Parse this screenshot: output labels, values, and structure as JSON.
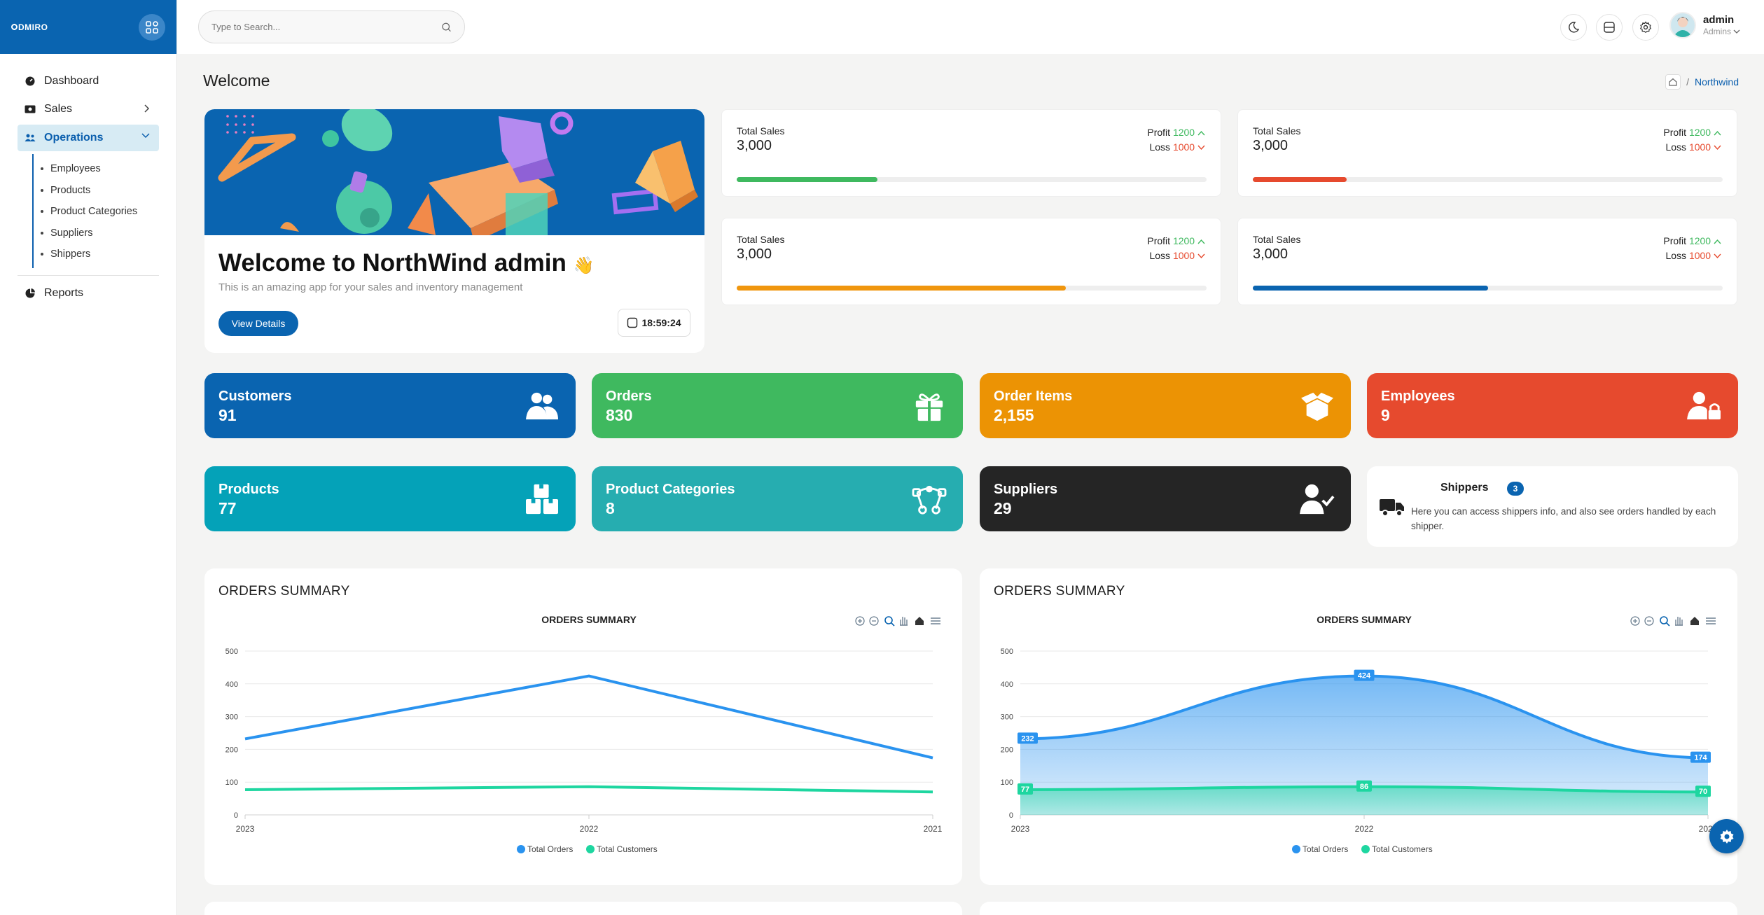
{
  "brand": {
    "logo": "DMIRO"
  },
  "sidebar": {
    "items": [
      {
        "label": "Dashboard"
      },
      {
        "label": "Sales"
      },
      {
        "label": "Operations"
      },
      {
        "label": "Reports"
      }
    ],
    "sub_items": [
      "Employees",
      "Products",
      "Product Categories",
      "Suppliers",
      "Shippers"
    ]
  },
  "header": {
    "search_placeholder": "Type to Search...",
    "user_name": "admin",
    "user_role": "Admins"
  },
  "page": {
    "title": "Welcome",
    "breadcrumb": "Northwind"
  },
  "welcome": {
    "heading": "Welcome to NorthWind admin",
    "wave": "👋",
    "subtitle": "This is an amazing app for your sales and inventory management",
    "button": "View Details",
    "time": "18:59:24"
  },
  "sales_cards": [
    {
      "label": "Total Sales",
      "value": "3,000",
      "profit_label": "Profit",
      "profit": "1200",
      "loss_label": "Loss",
      "loss": "1000",
      "progress": 0.3,
      "color": "#3fb95f"
    },
    {
      "label": "Total Sales",
      "value": "3,000",
      "profit_label": "Profit",
      "profit": "1200",
      "loss_label": "Loss",
      "loss": "1000",
      "progress": 0.2,
      "color": "#e64a2e"
    },
    {
      "label": "Total Sales",
      "value": "3,000",
      "profit_label": "Profit",
      "profit": "1200",
      "loss_label": "Loss",
      "loss": "1000",
      "progress": 0.7,
      "color": "#f0960e"
    },
    {
      "label": "Total Sales",
      "value": "3,000",
      "profit_label": "Profit",
      "profit": "1200",
      "loss_label": "Loss",
      "loss": "1000",
      "progress": 0.5,
      "color": "#0a64b0"
    }
  ],
  "stats": [
    {
      "label": "Customers",
      "value": "91",
      "color": "#0a64b0",
      "icon": "users-icon"
    },
    {
      "label": "Orders",
      "value": "830",
      "color": "#3fb95f",
      "icon": "gift-icon"
    },
    {
      "label": "Order Items",
      "value": "2,155",
      "color": "#ec9304",
      "icon": "box-open-icon"
    },
    {
      "label": "Employees",
      "value": "9",
      "color": "#e64a2e",
      "icon": "user-lock-icon"
    },
    {
      "label": "Products",
      "value": "77",
      "color": "#04a2b8",
      "icon": "boxes-icon"
    },
    {
      "label": "Product Categories",
      "value": "8",
      "color": "#26adb0",
      "icon": "vector-nodes-icon"
    },
    {
      "label": "Suppliers",
      "value": "29",
      "color": "#252525",
      "icon": "user-check-icon"
    }
  ],
  "shippers": {
    "title": "Shippers",
    "count": "3",
    "description": "Here you can access shippers info, and also see orders handled by each shipper."
  },
  "chart_data": [
    {
      "type": "line",
      "card_title": "ORDERS SUMMARY",
      "title": "ORDERS SUMMARY",
      "x": [
        "2023",
        "2022",
        "2021"
      ],
      "series": [
        {
          "name": "Total Orders",
          "values": [
            232,
            424,
            174
          ],
          "color": "#2a93ef"
        },
        {
          "name": "Total Customers",
          "values": [
            77,
            86,
            70
          ],
          "color": "#1ed6a0"
        }
      ],
      "ylim": [
        0,
        500
      ],
      "yticks": [
        0,
        100,
        200,
        300,
        400,
        500
      ],
      "legend": "bottom",
      "grid": true
    },
    {
      "type": "area",
      "card_title": "ORDERS SUMMARY",
      "title": "ORDERS SUMMARY",
      "x": [
        "2023",
        "2022",
        "2021"
      ],
      "series": [
        {
          "name": "Total Orders",
          "values": [
            232,
            424,
            174
          ],
          "color": "#2a93ef"
        },
        {
          "name": "Total Customers",
          "values": [
            77,
            86,
            70
          ],
          "color": "#1ed6a0"
        }
      ],
      "ylim": [
        0,
        500
      ],
      "yticks": [
        0,
        100,
        200,
        300,
        400,
        500
      ],
      "legend": "bottom",
      "grid": true,
      "data_labels": true
    }
  ]
}
